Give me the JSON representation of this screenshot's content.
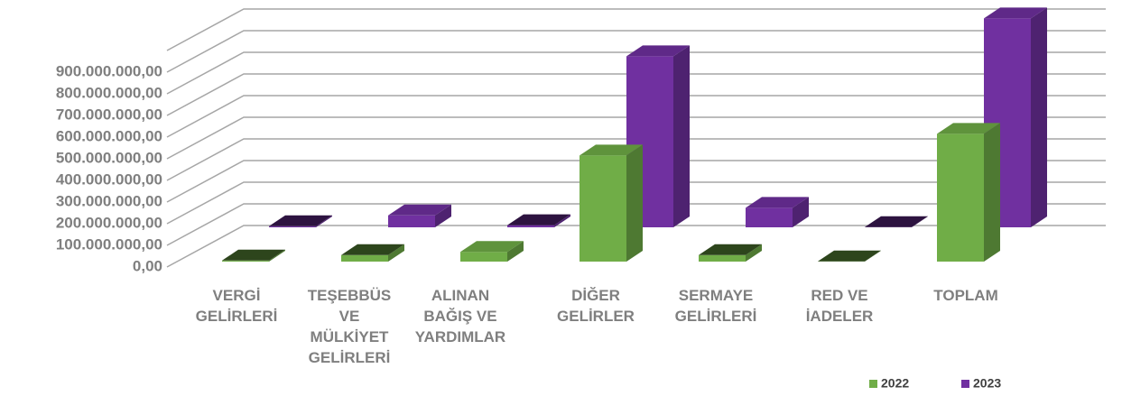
{
  "chart_data": {
    "type": "bar3d",
    "categories": [
      "VERGİ GELİRLERİ",
      "TEŞEBBÜS VE MÜLKİYET GELİRLERİ",
      "ALINAN BAĞIŞ VE YARDIMLAR",
      "DİĞER GELİRLER",
      "SERMAYE GELİRLERİ",
      "RED VE İADELER",
      "TOPLAM"
    ],
    "series": [
      {
        "name": "2022",
        "color": "#70ad47",
        "values": [
          5000000,
          30000000,
          45000000,
          490000000,
          30000000,
          1000000,
          590000000
        ]
      },
      {
        "name": "2023",
        "color": "#7030a0",
        "values": [
          5000000,
          55000000,
          10000000,
          790000000,
          90000000,
          1000000,
          965000000
        ]
      }
    ],
    "ylim": [
      0,
      1000000000
    ],
    "yticks": [
      {
        "value": 0,
        "label": "0,00"
      },
      {
        "value": 100000000,
        "label": "100.000.000,00"
      },
      {
        "value": 200000000,
        "label": "200.000.000,00"
      },
      {
        "value": 300000000,
        "label": "300.000.000,00"
      },
      {
        "value": 400000000,
        "label": "400.000.000,00"
      },
      {
        "value": 500000000,
        "label": "500.000.000,00"
      },
      {
        "value": 600000000,
        "label": "600.000.000,00"
      },
      {
        "value": 700000000,
        "label": "700.000.000,00"
      },
      {
        "value": 800000000,
        "label": "800.000.000,00"
      },
      {
        "value": 900000000,
        "label": "900.000.000,00"
      }
    ],
    "grid": true,
    "legend": "bottom-right"
  }
}
